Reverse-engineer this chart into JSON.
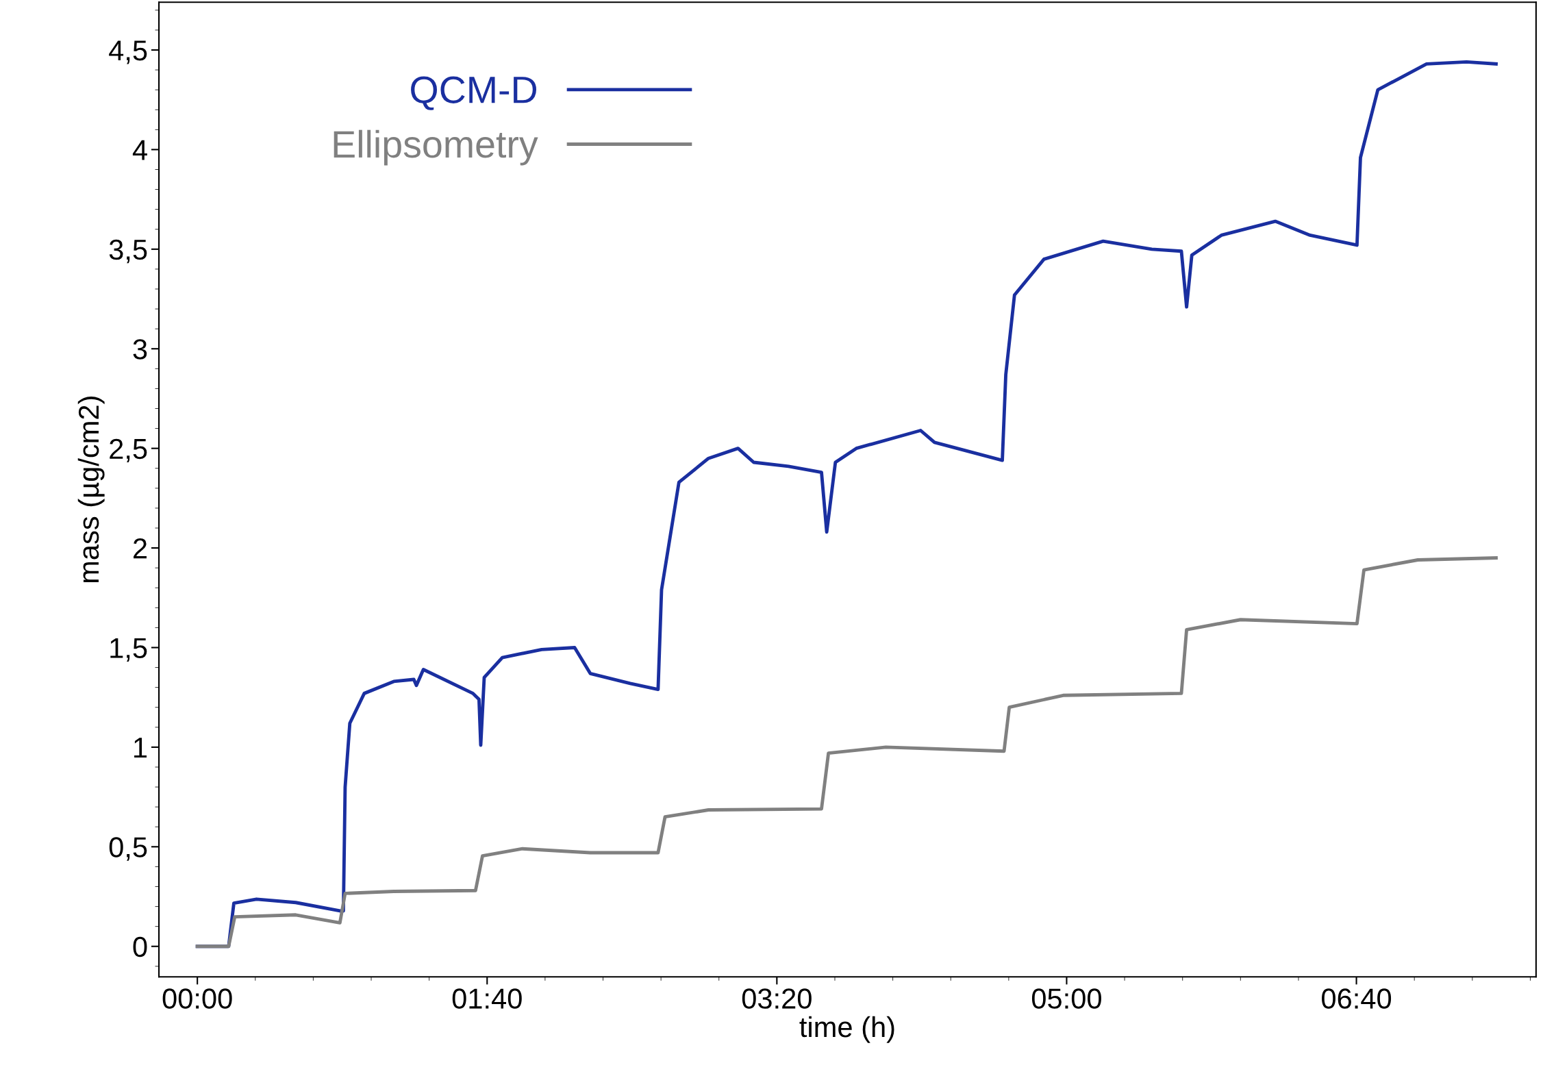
{
  "chart_data": {
    "type": "line",
    "xlabel": "time (h)",
    "ylabel": "mass (µg/cm2)",
    "xlim": [
      -0.221,
      7.7
    ],
    "ylim": [
      -0.153,
      4.74
    ],
    "xticks": [
      {
        "value": 0,
        "label": "00:00"
      },
      {
        "value": 1.6667,
        "label": "01:40"
      },
      {
        "value": 3.3333,
        "label": "03:20"
      },
      {
        "value": 5,
        "label": "05:00"
      },
      {
        "value": 6.6667,
        "label": "06:40"
      }
    ],
    "yticks": [
      0,
      {
        "value": 0.5,
        "label": "0,5"
      },
      1,
      {
        "value": 1.5,
        "label": "1,5"
      },
      2,
      {
        "value": 2.5,
        "label": "2,5"
      },
      3,
      {
        "value": 3.5,
        "label": "3,5"
      },
      4,
      {
        "value": 4.5,
        "label": "4,5"
      }
    ],
    "grid": false,
    "legend": "top left",
    "line_style": "solid",
    "marker": "none",
    "series": [
      {
        "name": "QCM-D",
        "color": "#1a2fa0",
        "x": [
          0,
          0.18,
          0.21,
          0.34,
          0.566,
          0.82,
          0.84,
          0.85,
          0.877,
          0.96,
          1.13,
          1.245,
          1.26,
          1.3,
          1.585,
          1.62,
          1.63,
          1.65,
          1.754,
          1.98,
          2.17,
          2.26,
          2.49,
          2.65,
          2.67,
          2.77,
          2.94,
          3.11,
          3.2,
          3.4,
          3.59,
          3.62,
          3.67,
          3.79,
          4.16,
          4.24,
          4.63,
          4.65,
          4.7,
          4.87,
          5.21,
          5.49,
          5.66,
          5.69,
          5.72,
          5.89,
          6.2,
          6.4,
          6.67,
          6.69,
          6.79,
          7.07,
          7.3,
          7.47
        ],
        "values": [
          0,
          0,
          0.217,
          0.237,
          0.22,
          0.178,
          0.178,
          0.8,
          1.12,
          1.27,
          1.33,
          1.34,
          1.31,
          1.39,
          1.27,
          1.24,
          1.01,
          1.35,
          1.45,
          1.49,
          1.5,
          1.37,
          1.32,
          1.29,
          1.79,
          2.33,
          2.45,
          2.5,
          2.43,
          2.41,
          2.38,
          2.08,
          2.43,
          2.5,
          2.59,
          2.53,
          2.44,
          2.87,
          3.27,
          3.45,
          3.54,
          3.5,
          3.49,
          3.21,
          3.47,
          3.57,
          3.64,
          3.57,
          3.52,
          3.96,
          4.3,
          4.43,
          4.44,
          4.43
        ]
      },
      {
        "name": "Ellipsometry",
        "color": "#808080",
        "x": [
          0,
          0.18,
          0.215,
          0.566,
          0.82,
          0.85,
          1.13,
          1.6,
          1.64,
          1.87,
          2.26,
          2.65,
          2.69,
          2.94,
          3.59,
          3.63,
          3.96,
          4.64,
          4.67,
          4.98,
          5.66,
          5.69,
          6.0,
          6.67,
          6.71,
          7.02,
          7.47
        ],
        "values": [
          0,
          0,
          0.148,
          0.158,
          0.118,
          0.266,
          0.276,
          0.28,
          0.454,
          0.49,
          0.47,
          0.47,
          0.65,
          0.685,
          0.69,
          0.97,
          1.0,
          0.98,
          1.2,
          1.26,
          1.27,
          1.59,
          1.64,
          1.62,
          1.89,
          1.94,
          1.95
        ]
      }
    ]
  }
}
